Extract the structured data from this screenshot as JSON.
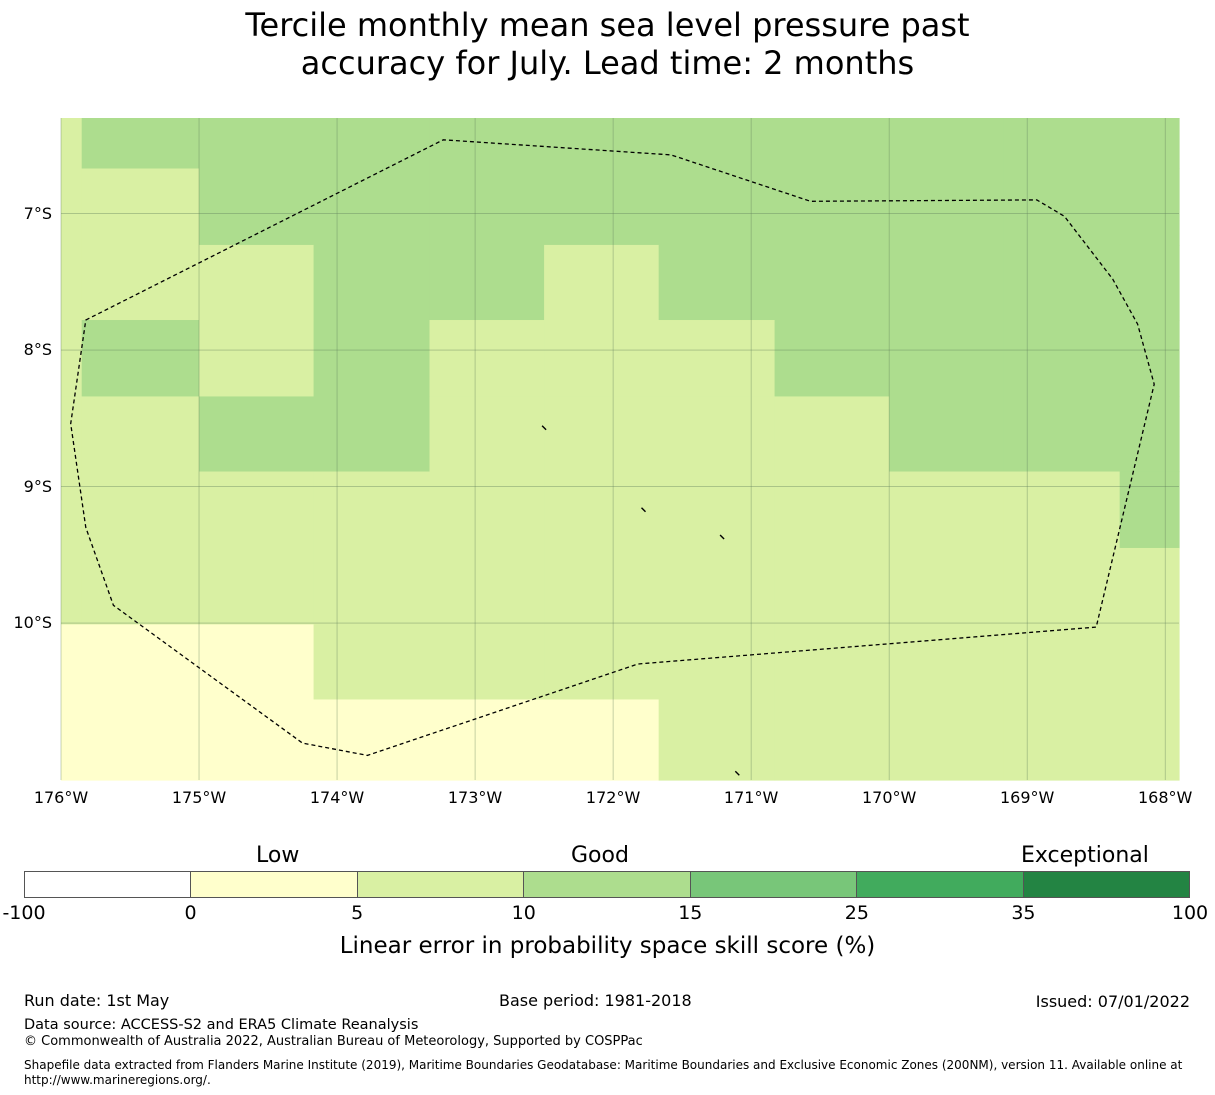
{
  "title": {
    "line1": "Tercile monthly mean sea level pressure past",
    "line2": "accuracy for July. Lead time: 2 months"
  },
  "axes": {
    "y_labels": [
      "7°S",
      "8°S",
      "9°S",
      "10°S"
    ],
    "x_labels": [
      "176°W",
      "175°W",
      "174°W",
      "173°W",
      "172°W",
      "171°W",
      "170°W",
      "169°W",
      "168°W"
    ],
    "lon_range": [
      -176,
      -167.9
    ],
    "lat_range": [
      -11.15,
      -6.3
    ]
  },
  "chart_data": {
    "type": "heatmap",
    "variable": "Linear error in probability space skill score (%)",
    "lon_edges": [
      -176.0,
      -175.85,
      -175.0,
      -174.17,
      -173.33,
      -172.5,
      -171.67,
      -170.83,
      -170.0,
      -169.17,
      -168.33,
      -167.9
    ],
    "lat_edges": [
      -6.3,
      -6.67,
      -7.23,
      -7.78,
      -8.34,
      -8.89,
      -9.45,
      -10.01,
      -10.56,
      -11.15
    ],
    "class_grid": [
      [
        1,
        2,
        2,
        2,
        2,
        2,
        2,
        2,
        2,
        2,
        2
      ],
      [
        1,
        1,
        2,
        2,
        2,
        2,
        2,
        2,
        2,
        2,
        2
      ],
      [
        1,
        1,
        1,
        2,
        2,
        1,
        2,
        2,
        2,
        2,
        2
      ],
      [
        1,
        2,
        1,
        2,
        1,
        1,
        1,
        2,
        2,
        2,
        2
      ],
      [
        1,
        1,
        2,
        2,
        1,
        1,
        1,
        1,
        2,
        2,
        2
      ],
      [
        1,
        1,
        1,
        1,
        1,
        1,
        1,
        1,
        1,
        1,
        2
      ],
      [
        1,
        1,
        1,
        1,
        1,
        1,
        1,
        1,
        1,
        1,
        1
      ],
      [
        0,
        0,
        0,
        1,
        1,
        1,
        1,
        1,
        1,
        1,
        1
      ],
      [
        0,
        0,
        0,
        0,
        0,
        0,
        1,
        1,
        1,
        1,
        1
      ]
    ],
    "boundary_eez": [
      [
        -175.82,
        -7.78
      ],
      [
        -173.23,
        -6.46
      ],
      [
        -171.58,
        -6.57
      ],
      [
        -170.57,
        -6.91
      ],
      [
        -168.93,
        -6.9
      ],
      [
        -168.73,
        -7.02
      ],
      [
        -168.38,
        -7.48
      ],
      [
        -168.2,
        -7.81
      ],
      [
        -168.08,
        -8.25
      ],
      [
        -168.5,
        -10.03
      ],
      [
        -171.82,
        -10.3
      ],
      [
        -173.78,
        -10.97
      ],
      [
        -174.25,
        -10.88
      ],
      [
        -175.62,
        -9.87
      ],
      [
        -175.82,
        -9.3
      ],
      [
        -175.93,
        -8.54
      ],
      [
        -175.82,
        -7.78
      ]
    ],
    "islands": [
      {
        "lon": -172.5,
        "lat": -8.57
      },
      {
        "lon": -171.78,
        "lat": -9.17
      },
      {
        "lon": -171.21,
        "lat": -9.37
      },
      {
        "lon": -171.1,
        "lat": -11.1
      }
    ]
  },
  "colorbar": {
    "ticks": [
      "-100",
      "0",
      "5",
      "10",
      "15",
      "25",
      "35",
      "100"
    ],
    "colors": [
      "#ffffff",
      "#ffffcc",
      "#d9f0a3",
      "#addd8e",
      "#78c679",
      "#41ab5d",
      "#238443"
    ],
    "categories": [
      "Low",
      "Good",
      "Exceptional"
    ],
    "label": "Linear error in probability space skill score (%)"
  },
  "footer": {
    "run_date": "Run date: 1st May",
    "base_period": "Base period: 1981-2018",
    "issued": "Issued: 07/01/2022",
    "data_source": "Data source: ACCESS-S2 and ERA5 Climate Reanalysis",
    "copyright": "© Commonwealth of Australia 2022, Australian Bureau of Meteorology, Supported by COSPPac",
    "shapefile_note": "Shapefile data extracted from Flanders Marine Institute (2019), Maritime Boundaries Geodatabase: Maritime Boundaries and Exclusive Economic Zones (200NM), version 11. Available online at http://www.marineregions.org/."
  }
}
